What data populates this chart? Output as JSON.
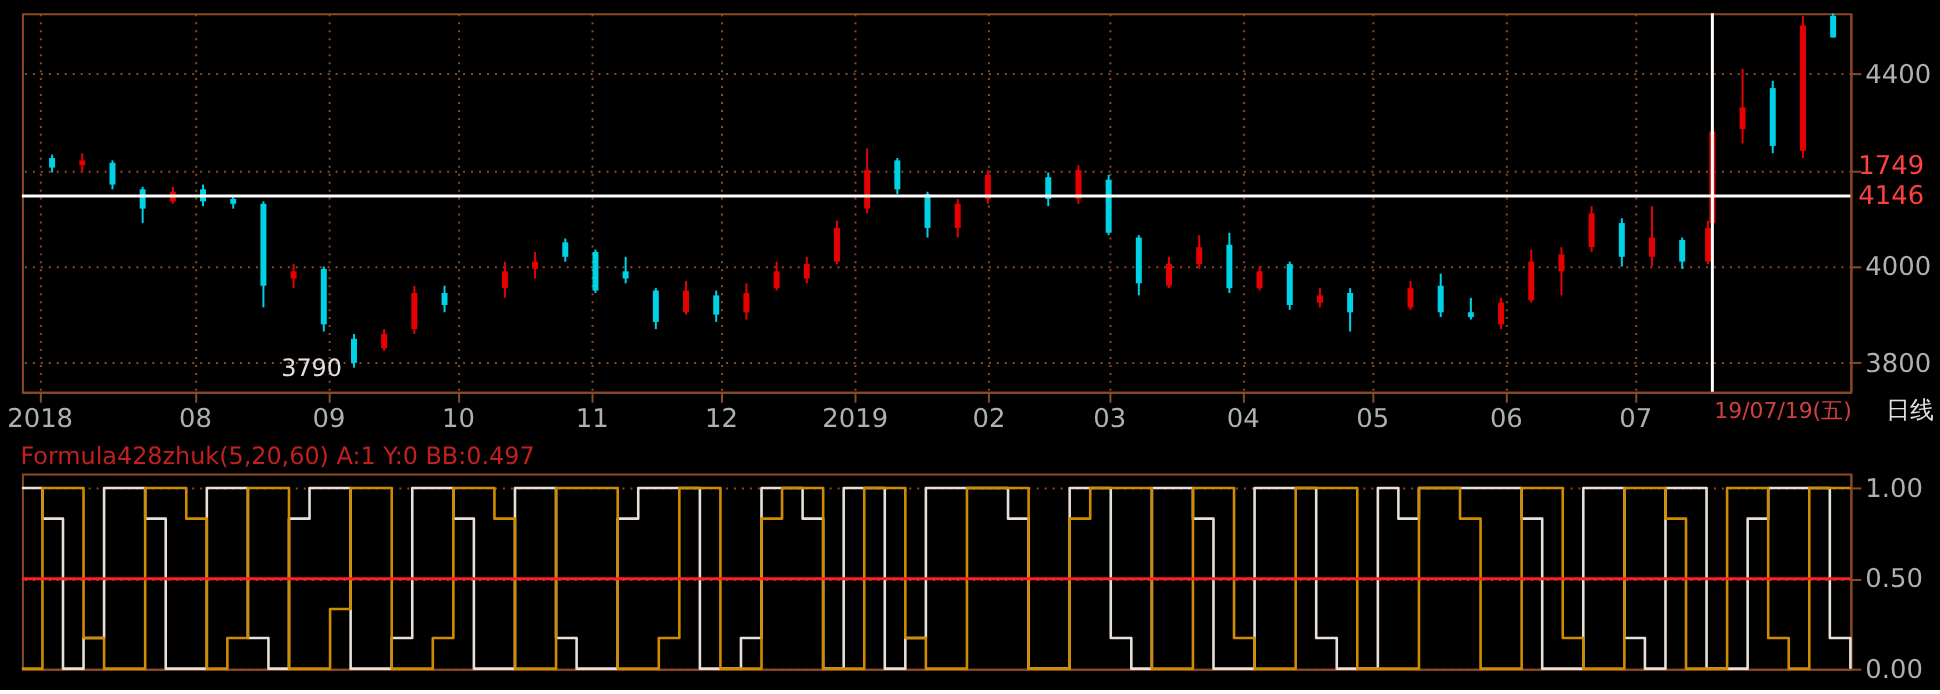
{
  "chart_data": [
    {
      "type": "candlestick",
      "x": [
        "2018-06-29",
        "2018-07-06",
        "2018-07-13",
        "2018-07-20",
        "2018-07-27",
        "2018-08-03",
        "2018-08-10",
        "2018-08-17",
        "2018-08-24",
        "2018-08-31",
        "2018-09-07",
        "2018-09-14",
        "2018-09-21",
        "2018-09-28",
        "2018-10-12",
        "2018-10-19",
        "2018-10-26",
        "2018-11-02",
        "2018-11-09",
        "2018-11-16",
        "2018-11-23",
        "2018-11-30",
        "2018-12-07",
        "2018-12-14",
        "2018-12-21",
        "2018-12-28",
        "2019-01-04",
        "2019-01-11",
        "2019-01-18",
        "2019-01-25",
        "2019-02-01",
        "2019-02-15",
        "2019-02-22",
        "2019-03-01",
        "2019-03-08",
        "2019-03-15",
        "2019-03-22",
        "2019-03-29",
        "2019-04-05",
        "2019-04-12",
        "2019-04-19",
        "2019-04-26",
        "2019-05-10",
        "2019-05-17",
        "2019-05-24",
        "2019-05-31",
        "2019-06-07",
        "2019-06-14",
        "2019-06-21",
        "2019-06-28",
        "2019-07-05",
        "2019-07-12",
        "2019-07-18",
        "2019-07-19",
        "2019-07-26",
        "2019-08-02",
        "2019-08-09",
        "2019-08-16"
      ],
      "ohlc": [
        [
          4225,
          4232,
          4195,
          4205
        ],
        [
          4210,
          4235,
          4195,
          4220
        ],
        [
          4215,
          4220,
          4160,
          4170
        ],
        [
          4160,
          4165,
          4090,
          4120
        ],
        [
          4135,
          4165,
          4130,
          4155
        ],
        [
          4160,
          4170,
          4125,
          4135
        ],
        [
          4140,
          4148,
          4120,
          4130
        ],
        [
          4130,
          4135,
          3915,
          3960
        ],
        [
          3975,
          4005,
          3955,
          3990
        ],
        [
          3995,
          4000,
          3865,
          3880
        ],
        [
          3850,
          3860,
          3790,
          3800
        ],
        [
          3830,
          3870,
          3825,
          3860
        ],
        [
          3870,
          3960,
          3860,
          3945
        ],
        [
          3945,
          3960,
          3905,
          3920
        ],
        [
          3955,
          4010,
          3935,
          3990
        ],
        [
          3995,
          4030,
          3975,
          4010
        ],
        [
          4050,
          4058,
          4010,
          4020
        ],
        [
          4030,
          4035,
          3945,
          3950
        ],
        [
          3990,
          4020,
          3965,
          3975
        ],
        [
          3950,
          3955,
          3870,
          3885
        ],
        [
          3905,
          3970,
          3900,
          3950
        ],
        [
          3940,
          3950,
          3885,
          3900
        ],
        [
          3905,
          3965,
          3890,
          3945
        ],
        [
          3955,
          4010,
          3950,
          3990
        ],
        [
          3975,
          4020,
          3965,
          4005
        ],
        [
          4010,
          4095,
          4005,
          4080
        ],
        [
          4120,
          4245,
          4110,
          4200
        ],
        [
          4220,
          4225,
          4150,
          4160
        ],
        [
          4150,
          4155,
          4060,
          4080
        ],
        [
          4080,
          4140,
          4060,
          4130
        ],
        [
          4140,
          4200,
          4130,
          4190
        ],
        [
          4185,
          4195,
          4125,
          4140
        ],
        [
          4140,
          4210,
          4130,
          4200
        ],
        [
          4180,
          4190,
          4065,
          4070
        ],
        [
          4060,
          4065,
          3940,
          3965
        ],
        [
          3960,
          4020,
          3955,
          4005
        ],
        [
          4005,
          4065,
          3995,
          4040
        ],
        [
          4045,
          4070,
          3945,
          3955
        ],
        [
          3955,
          4000,
          3950,
          3990
        ],
        [
          4005,
          4010,
          3910,
          3920
        ],
        [
          3925,
          3955,
          3915,
          3940
        ],
        [
          3945,
          3955,
          3865,
          3905
        ],
        [
          3915,
          3970,
          3910,
          3955
        ],
        [
          3960,
          3985,
          3895,
          3905
        ],
        [
          3905,
          3935,
          3890,
          3895
        ],
        [
          3880,
          3935,
          3870,
          3925
        ],
        [
          3930,
          4035,
          3925,
          4010
        ],
        [
          3990,
          4040,
          3940,
          4025
        ],
        [
          4040,
          4125,
          4030,
          4110
        ],
        [
          4090,
          4100,
          4000,
          4020
        ],
        [
          4020,
          4125,
          4000,
          4060
        ],
        [
          4055,
          4060,
          3995,
          4010
        ],
        [
          4010,
          4095,
          4005,
          4080
        ],
        [
          4090,
          4290,
          4080,
          4280
        ],
        [
          4285,
          4410,
          4255,
          4330
        ],
        [
          4370,
          4385,
          4235,
          4250
        ],
        [
          4240,
          4520,
          4225,
          4500
        ],
        [
          4520,
          4525,
          4475,
          4475
        ]
      ],
      "colors": [
        "#00d2e6",
        "#e60000",
        "#00d2e6",
        "#00d2e6",
        "#e60000",
        "#00d2e6",
        "#00d2e6",
        "#00d2e6",
        "#e60000",
        "#00d2e6",
        "#00d2e6",
        "#e60000",
        "#e60000",
        "#00d2e6",
        "#e60000",
        "#e60000",
        "#00d2e6",
        "#00d2e6",
        "#00d2e6",
        "#00d2e6",
        "#e60000",
        "#00d2e6",
        "#e60000",
        "#e60000",
        "#e60000",
        "#e60000",
        "#e60000",
        "#00d2e6",
        "#00d2e6",
        "#e60000",
        "#e60000",
        "#00d2e6",
        "#e60000",
        "#00d2e6",
        "#00d2e6",
        "#e60000",
        "#e60000",
        "#00d2e6",
        "#e60000",
        "#00d2e6",
        "#e60000",
        "#00d2e6",
        "#e60000",
        "#00d2e6",
        "#00d2e6",
        "#e60000",
        "#e60000",
        "#e60000",
        "#e60000",
        "#00d2e6",
        "#e60000",
        "#00d2e6",
        "#e60000",
        "#e60000",
        "#e60000",
        "#00d2e6",
        "#e60000",
        "#00d2e6"
      ],
      "xlim": [
        "2018-06-22",
        "2019-08-20"
      ],
      "xticks": [
        {
          "value": "2018-06-26",
          "label": "2018"
        },
        {
          "value": "2018-08-01",
          "label": "08"
        },
        {
          "value": "2018-09-01",
          "label": "09"
        },
        {
          "value": "2018-10-01",
          "label": "10"
        },
        {
          "value": "2018-11-01",
          "label": "11"
        },
        {
          "value": "2018-12-01",
          "label": "12"
        },
        {
          "value": "2019-01-01",
          "label": "2019"
        },
        {
          "value": "2019-02-01",
          "label": "02"
        },
        {
          "value": "2019-03-01",
          "label": "03"
        },
        {
          "value": "2019-04-01",
          "label": "04"
        },
        {
          "value": "2019-05-01",
          "label": "05"
        },
        {
          "value": "2019-06-01",
          "label": "06"
        },
        {
          "value": "2019-07-01",
          "label": "07"
        }
      ],
      "ylim": [
        3740,
        4525
      ],
      "yticks": [
        3800,
        4000,
        {
          "value": 4200,
          "label": null
        },
        4400
      ],
      "grid": true,
      "ref_lines": [
        {
          "axis": "y",
          "value": 4146,
          "label": "4146",
          "color": "#ffffff"
        },
        {
          "axis": "x",
          "value": "2019-07-19",
          "label": "19/07/19(五)",
          "color": "#ffffff"
        }
      ],
      "annotations": [
        {
          "text": "3790",
          "x": "2018-09-07",
          "y": 3790
        },
        "1749",
        "日线"
      ]
    },
    {
      "type": "step",
      "title": "Formula428zhuk(5,20,60) A:1 Y:0 BB:0.497",
      "categories": [
        null,
        null,
        null,
        null,
        null,
        null,
        null,
        null,
        null,
        null,
        null,
        null,
        null,
        null,
        null,
        null,
        null,
        null,
        null,
        null,
        null,
        null,
        null,
        null,
        null,
        null,
        null,
        null,
        null,
        null,
        null,
        null,
        null,
        null,
        null,
        null,
        null,
        null,
        null,
        null,
        null,
        null,
        null,
        null,
        null,
        null,
        null,
        null,
        null,
        null,
        null,
        null,
        null,
        null,
        null,
        null,
        null,
        null,
        null,
        null,
        null,
        null,
        null,
        null,
        null,
        null,
        null,
        null,
        null,
        null,
        null,
        null,
        null,
        null,
        null,
        null,
        null,
        null,
        null,
        null,
        null,
        null,
        null,
        null,
        null,
        null,
        null,
        null,
        null,
        null
      ],
      "series": [
        {
          "color": "#e8e0d8",
          "values": [
            1,
            0.83,
            0,
            0.17,
            1,
            1,
            0.83,
            0,
            0,
            1,
            1,
            0.17,
            0,
            0.83,
            1,
            1,
            0,
            0,
            0.17,
            1,
            1,
            0.83,
            0,
            0,
            1,
            1,
            0.17,
            0,
            0,
            0.83,
            1,
            1,
            1,
            0,
            0,
            0.17,
            1,
            1,
            0.83,
            0,
            1,
            1,
            0,
            0.17,
            1,
            1,
            1,
            1,
            0.83,
            0,
            0,
            1,
            1,
            0.17,
            0,
            1,
            1,
            0.83,
            0,
            0,
            1,
            1,
            1,
            0.17,
            0,
            0,
            1,
            0.83,
            1,
            1,
            1,
            1,
            1,
            0.83,
            0,
            0,
            1,
            1,
            0.17,
            0,
            1,
            1,
            0,
            0,
            0.83,
            1,
            1,
            1,
            0.17,
            0
          ]
        },
        {
          "color": "#d08c00",
          "values": [
            0,
            1,
            1,
            0.17,
            0,
            0,
            1,
            1,
            0.83,
            0,
            0.17,
            1,
            1,
            0,
            0,
            0.33,
            1,
            1,
            0,
            0,
            0.17,
            1,
            1,
            0.83,
            0,
            0,
            1,
            1,
            1,
            0,
            0,
            0.17,
            1,
            1,
            0,
            0,
            0.83,
            1,
            1,
            0,
            0,
            1,
            1,
            0.17,
            0,
            0,
            1,
            1,
            1,
            0,
            0,
            0.83,
            1,
            1,
            1,
            0,
            0,
            1,
            1,
            0.17,
            0,
            0,
            1,
            1,
            1,
            0,
            0,
            0,
            1,
            1,
            0.83,
            0,
            0,
            1,
            1,
            0.17,
            0,
            0,
            1,
            1,
            0.83,
            0,
            0,
            1,
            1,
            0.17,
            0,
            1,
            1,
            1
          ]
        }
      ],
      "ylim": [
        0,
        1.08
      ],
      "yticks": [
        {
          "value": 0,
          "label": "0.00"
        },
        {
          "value": 0.5,
          "label": "0.50"
        },
        {
          "value": 1,
          "label": "1.00"
        }
      ],
      "tick_labels": "y",
      "grid": "y",
      "ref_lines": [
        {
          "axis": "y",
          "value": 0.497,
          "color": "#ff2020"
        }
      ]
    }
  ]
}
